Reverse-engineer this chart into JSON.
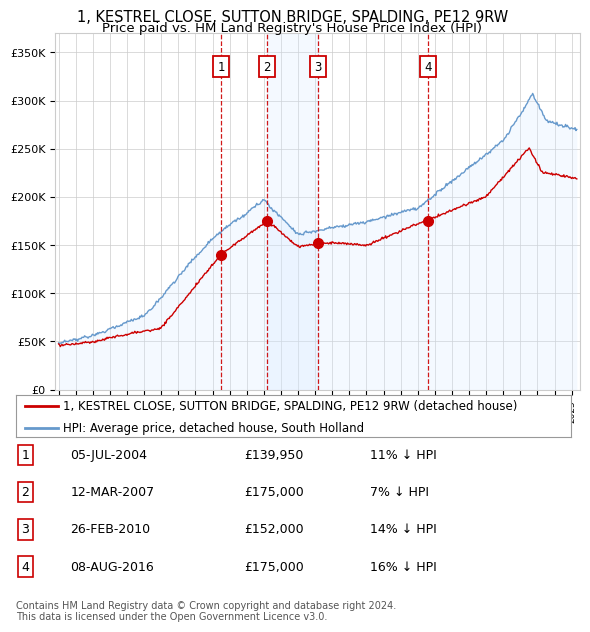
{
  "title": "1, KESTREL CLOSE, SUTTON BRIDGE, SPALDING, PE12 9RW",
  "subtitle": "Price paid vs. HM Land Registry's House Price Index (HPI)",
  "ylabel_ticks": [
    "£0",
    "£50K",
    "£100K",
    "£150K",
    "£200K",
    "£250K",
    "£300K",
    "£350K"
  ],
  "ylim": [
    0,
    370000
  ],
  "xlim_start": 1994.8,
  "xlim_end": 2025.5,
  "sale_dates": [
    2004.508,
    2007.194,
    2010.154,
    2016.597
  ],
  "sale_prices": [
    139950,
    175000,
    152000,
    175000
  ],
  "sale_labels": [
    "1",
    "2",
    "3",
    "4"
  ],
  "legend_property": "1, KESTREL CLOSE, SUTTON BRIDGE, SPALDING, PE12 9RW (detached house)",
  "legend_hpi": "HPI: Average price, detached house, South Holland",
  "table_rows": [
    [
      "1",
      "05-JUL-2004",
      "£139,950",
      "11% ↓ HPI"
    ],
    [
      "2",
      "12-MAR-2007",
      "£175,000",
      "7% ↓ HPI"
    ],
    [
      "3",
      "26-FEB-2010",
      "£152,000",
      "14% ↓ HPI"
    ],
    [
      "4",
      "08-AUG-2016",
      "£175,000",
      "16% ↓ HPI"
    ]
  ],
  "footnote": "Contains HM Land Registry data © Crown copyright and database right 2024.\nThis data is licensed under the Open Government Licence v3.0.",
  "property_color": "#cc0000",
  "hpi_color": "#6699cc",
  "hpi_fill_color": "#d4e8ff",
  "background_color": "#ffffff",
  "grid_color": "#cccccc",
  "title_fontsize": 10.5,
  "subtitle_fontsize": 9.5,
  "tick_fontsize": 8,
  "legend_fontsize": 8.5,
  "table_fontsize": 9
}
